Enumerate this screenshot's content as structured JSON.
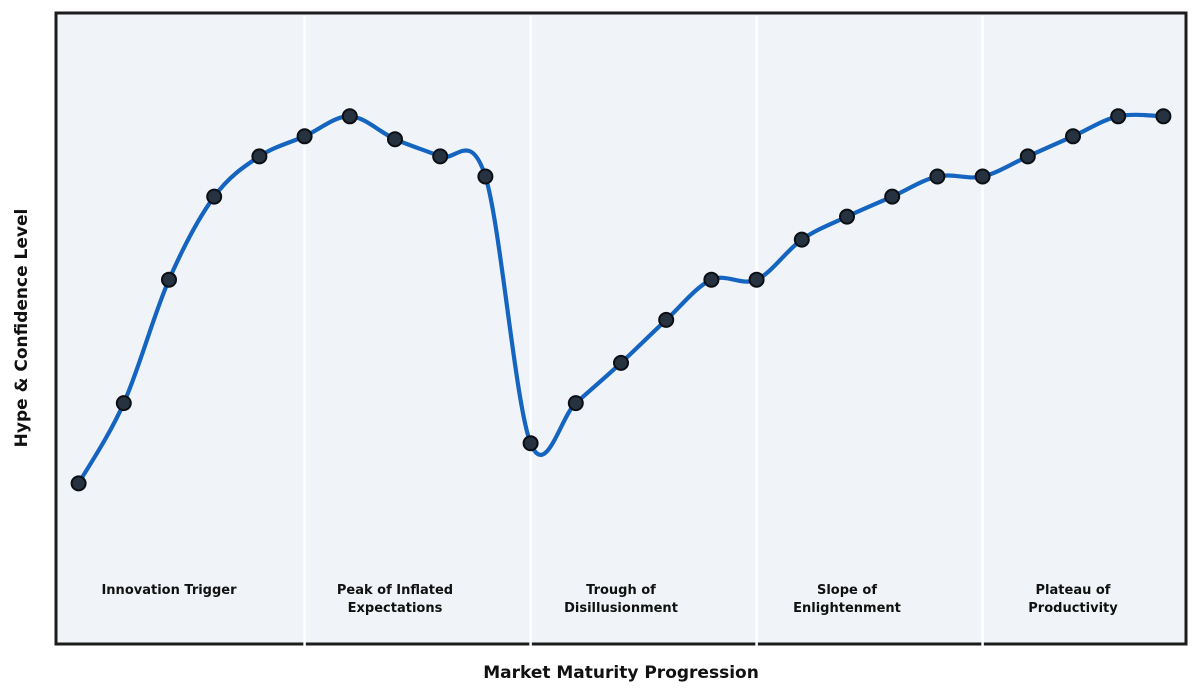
{
  "chart_data": {
    "type": "line",
    "title": "",
    "xlabel": "Market Maturity Progression",
    "ylabel": "Hype & Confidence Level",
    "x": [
      0,
      1,
      2,
      3,
      4,
      5,
      6,
      7,
      8,
      9,
      10,
      11,
      12,
      13,
      14,
      15,
      16,
      17,
      18,
      19,
      20,
      21,
      22,
      23,
      24
    ],
    "series": [
      {
        "name": "Hype & Confidence Level",
        "values": [
          28,
          42,
          63.5,
          78,
          85,
          88.5,
          92,
          88,
          85,
          81.5,
          35,
          42,
          49,
          56.5,
          63.5,
          63.5,
          70.5,
          74.5,
          78,
          81.5,
          81.5,
          85,
          88.5,
          92,
          92
        ]
      }
    ],
    "xlim": [
      -0.5,
      24.5
    ],
    "ylim": [
      0,
      110
    ],
    "grid": false,
    "legend": "none",
    "ticks": "none",
    "smoothing": "cubic-spline-through-points",
    "plot_background": "#f0f4f8",
    "figure_background": "#ffffff",
    "border_color": "#1c1c1c",
    "line_color": "#1565c0",
    "marker_color": "#263240",
    "marker_edge_color": "#0b0f14",
    "divider_color": "#ffffff",
    "phase_dividers_x": [
      5,
      10,
      15,
      20
    ],
    "phases": [
      {
        "label": "Innovation Trigger",
        "center_x": 2
      },
      {
        "label": "Peak of Inflated\nExpectations",
        "center_x": 7
      },
      {
        "label": "Trough of\nDisillusionment",
        "center_x": 12
      },
      {
        "label": "Slope of\nEnlightenment",
        "center_x": 17
      },
      {
        "label": "Plateau of\nProductivity",
        "center_x": 22
      }
    ]
  }
}
